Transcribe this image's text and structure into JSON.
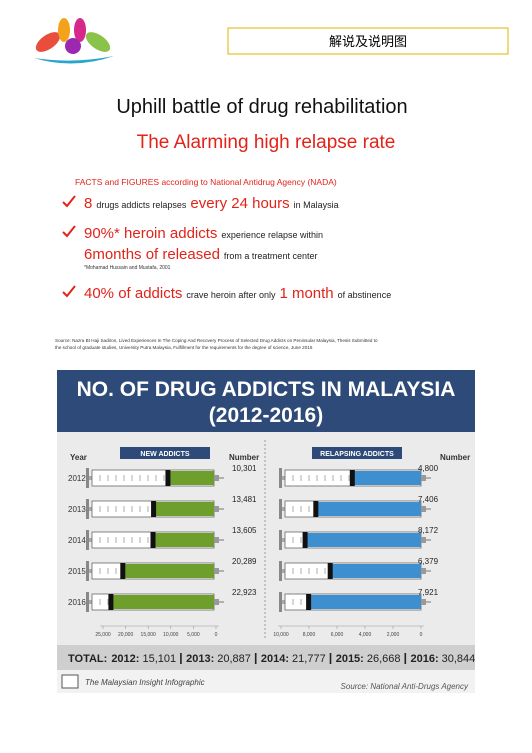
{
  "header": {
    "label": "解说及说明图"
  },
  "title": "Uphill battle of drug rehabilitation",
  "subtitle": "The Alarming high relapse rate",
  "facts": {
    "heading": "FACTS and FIGURES according to National Antidrug Agency (NADA)",
    "items": [
      {
        "lines": [
          [
            {
              "text": "8",
              "emphasis": true
            },
            {
              "text": "drugs addicts relapses",
              "emphasis": false
            },
            {
              "text": "every 24 hours",
              "emphasis": true
            },
            {
              "text": "in Malaysia",
              "emphasis": false
            }
          ]
        ]
      },
      {
        "lines": [
          [
            {
              "text": "90%* heroin addicts",
              "emphasis": true
            },
            {
              "text": "experience relapse within",
              "emphasis": false
            }
          ],
          [
            {
              "text": "6months of released",
              "emphasis": true
            },
            {
              "text": "from a treatment center",
              "emphasis": false
            }
          ]
        ],
        "note": "*Mohamad Hussain and Mustafa, 2001"
      },
      {
        "lines": [
          [
            {
              "text": "40% of addicts",
              "emphasis": true
            },
            {
              "text": "crave heroin after only",
              "emphasis": false
            },
            {
              "text": "1 month",
              "emphasis": true
            },
            {
              "text": "of abstinence",
              "emphasis": false
            }
          ]
        ]
      }
    ]
  },
  "source": [
    "Source: Nazra Bt Haji Sadiron, Lived Experiences In The Coping And Recovery Process of Selected Drug Addicts on Peninsular Malaysia, Thesis Submitted to",
    "the school of graduate studies, University Putra Malaysia,  Fulfillment for the requirements for the degree of science, June 2015"
  ],
  "infographic": {
    "title": "NO. OF DRUG ADDICTS IN MALAYSIA",
    "subtitle": "(2012-2016)",
    "year_heading": "Year",
    "number_heading": "Number",
    "years": [
      "2012",
      "2013",
      "2014",
      "2015",
      "2016"
    ],
    "panels": [
      {
        "title": "NEW ADDICTS",
        "color": "#6e9e2c",
        "values": [
          10301,
          13481,
          13605,
          20289,
          22923
        ],
        "value_labels": [
          "10,301",
          "13,481",
          "13,605",
          "20,289",
          "22,923"
        ],
        "xlim": [
          25000,
          0
        ],
        "xticks": [
          {
            "value": 25000,
            "label": "25,000"
          },
          {
            "value": 20000,
            "label": "20,000"
          },
          {
            "value": 15000,
            "label": "15,000"
          },
          {
            "value": 10000,
            "label": "10,000"
          },
          {
            "value": 5000,
            "label": "5,000"
          },
          0
        ]
      },
      {
        "title": "RELAPSING ADDICTS",
        "color": "#3d8fd0",
        "values": [
          4800,
          7406,
          8172,
          6379,
          7921
        ],
        "value_labels": [
          "4,800",
          "7,406",
          "8,172",
          "6,379",
          "7,921"
        ],
        "xlim": [
          10000,
          0
        ],
        "xticks": [
          {
            "value": 10000,
            "label": "10,000"
          },
          {
            "value": 8000,
            "label": "8,000"
          },
          {
            "value": 6000,
            "label": "6,000"
          },
          {
            "value": 4000,
            "label": "4,000"
          },
          {
            "value": 2000,
            "label": "2,000"
          },
          0
        ]
      }
    ],
    "totals": {
      "label": "TOTAL:",
      "items": [
        {
          "year": "2012:",
          "value": "15,101"
        },
        {
          "year": "2013:",
          "value": "20,887"
        },
        {
          "year": "2014:",
          "value": "21,777"
        },
        {
          "year": "2015:",
          "value": "26,668"
        },
        {
          "year": "2016:",
          "value": "30,844"
        }
      ]
    },
    "footer_left": "The Malaysian Insight Infographic",
    "footer_right": "Source: National Anti-Drugs Agency"
  }
}
